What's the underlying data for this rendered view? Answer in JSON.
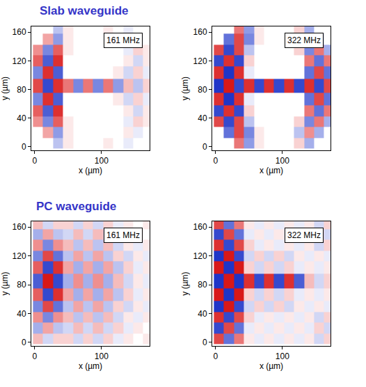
{
  "section_titles": [
    "Slab waveguide",
    "PC waveguide"
  ],
  "chart_data": [
    {
      "type": "heatmap",
      "title": "161 MHz",
      "xlabel": "x (µm)",
      "ylabel": "y (µm)",
      "xlim": [
        -5,
        172
      ],
      "ylim": [
        -5,
        168
      ],
      "xticks": [
        0,
        100
      ],
      "yticks": [
        0,
        40,
        80,
        120,
        160
      ],
      "zlim": [
        -1,
        1
      ],
      "x": [
        5,
        20,
        35,
        50,
        65,
        80,
        95,
        110,
        125,
        140,
        155,
        170
      ],
      "y": [
        5,
        20,
        35,
        50,
        65,
        85,
        105,
        120,
        135,
        150,
        165
      ],
      "cells": [
        [
          null,
          null,
          -0.3,
          0.1,
          0,
          0,
          0,
          0.1,
          0,
          -0.1,
          null,
          null
        ],
        [
          null,
          0.4,
          -0.5,
          0.1,
          0,
          0,
          0,
          0,
          0,
          0.1,
          -0.1,
          null
        ],
        [
          0.5,
          -0.6,
          0.7,
          0.1,
          0,
          0,
          0,
          0,
          0,
          -0.1,
          0.2,
          0.1
        ],
        [
          0.7,
          -0.8,
          0.9,
          0,
          0,
          0,
          0,
          0,
          0,
          0.1,
          -0.2,
          0.1
        ],
        [
          -0.6,
          0.9,
          -0.8,
          0,
          0,
          0,
          0,
          0,
          0.1,
          -0.2,
          0.2,
          -0.1
        ],
        [
          0.8,
          -0.9,
          0.9,
          0.6,
          -0.6,
          0.6,
          -0.6,
          0.6,
          -0.5,
          0.3,
          -0.3,
          0.2
        ],
        [
          -0.6,
          0.9,
          -0.8,
          0,
          0,
          0,
          0,
          0,
          0.1,
          -0.2,
          0.2,
          -0.1
        ],
        [
          0.7,
          -0.8,
          0.9,
          0,
          0,
          0,
          0,
          0,
          0,
          0.1,
          -0.2,
          0.1
        ],
        [
          0.5,
          -0.6,
          0.7,
          0.1,
          0,
          0,
          0,
          0,
          0,
          -0.1,
          0.2,
          0.1
        ],
        [
          null,
          0.4,
          -0.5,
          0.1,
          0,
          0,
          0,
          0,
          0,
          0.1,
          -0.1,
          null
        ],
        [
          null,
          null,
          -0.3,
          0.1,
          0,
          0,
          0,
          0.1,
          0,
          -0.1,
          null,
          null
        ]
      ]
    },
    {
      "type": "heatmap",
      "title": "322 MHz",
      "xlabel": "x (µm)",
      "ylabel": "y (µm)",
      "xlim": [
        -5,
        172
      ],
      "ylim": [
        -5,
        168
      ],
      "xticks": [
        0,
        100
      ],
      "yticks": [
        0,
        40,
        80,
        120,
        160
      ],
      "zlim": [
        -1,
        1
      ],
      "x": [
        5,
        20,
        35,
        50,
        65,
        80,
        95,
        110,
        125,
        140,
        155,
        170
      ],
      "y": [
        5,
        20,
        35,
        50,
        65,
        85,
        105,
        120,
        135,
        150,
        165
      ],
      "cells": [
        [
          null,
          null,
          0.6,
          -0.5,
          0.1,
          0,
          0,
          0,
          0.2,
          -0.4,
          null,
          null
        ],
        [
          null,
          -0.7,
          0.8,
          -0.6,
          0.1,
          0,
          0,
          0,
          -0.3,
          0.5,
          -0.4,
          null
        ],
        [
          0.8,
          -0.9,
          0.8,
          -0.3,
          0,
          0,
          0,
          0,
          0.2,
          -0.6,
          0.6,
          -0.4
        ],
        [
          -0.9,
          0.9,
          -0.9,
          0.2,
          0,
          0,
          0,
          0,
          0,
          0.6,
          -0.7,
          0.6
        ],
        [
          0.9,
          -1,
          0.9,
          -0.1,
          0,
          0,
          0,
          0,
          0,
          -0.7,
          0.8,
          -0.7
        ],
        [
          -1,
          1,
          -0.9,
          0.9,
          -0.9,
          0.9,
          -0.9,
          0.9,
          -0.9,
          0.9,
          -0.9,
          0.8
        ],
        [
          0.9,
          -1,
          0.9,
          -0.1,
          0,
          0,
          0,
          0,
          0,
          -0.7,
          0.8,
          -0.7
        ],
        [
          -0.9,
          0.9,
          -0.9,
          0.2,
          0,
          0,
          0,
          0,
          0,
          0.6,
          -0.7,
          0.6
        ],
        [
          0.8,
          -0.9,
          0.8,
          -0.3,
          0,
          0,
          0,
          0,
          0.2,
          -0.6,
          0.6,
          -0.4
        ],
        [
          null,
          -0.7,
          0.8,
          -0.6,
          0.1,
          0,
          0,
          0,
          -0.3,
          0.5,
          -0.4,
          null
        ],
        [
          null,
          null,
          0.6,
          -0.5,
          0.1,
          0,
          0,
          0,
          0.2,
          -0.4,
          null,
          null
        ]
      ]
    },
    {
      "type": "heatmap",
      "title": "161 MHz",
      "xlabel": "x (µm)",
      "ylabel": "y (µm)",
      "xlim": [
        -5,
        172
      ],
      "ylim": [
        -5,
        168
      ],
      "xticks": [
        0,
        100
      ],
      "yticks": [
        0,
        40,
        80,
        120,
        160
      ],
      "zlim": [
        -1,
        1
      ],
      "x": [
        5,
        20,
        35,
        50,
        65,
        80,
        95,
        110,
        125,
        140,
        155,
        170
      ],
      "y": [
        5,
        20,
        35,
        50,
        65,
        85,
        105,
        120,
        135,
        150,
        165
      ],
      "cells": [
        [
          0.3,
          -0.2,
          0.2,
          0.2,
          -0.2,
          0.2,
          -0.2,
          0.2,
          -0.1,
          0.1,
          0,
          0.1
        ],
        [
          -0.4,
          0.4,
          -0.3,
          -0.2,
          0.3,
          -0.2,
          0.3,
          -0.2,
          0.2,
          -0.1,
          0.1,
          0
        ],
        [
          0.5,
          -0.6,
          0.5,
          0.3,
          -0.3,
          0.3,
          -0.3,
          0.3,
          -0.2,
          0.1,
          -0.1,
          0.1
        ],
        [
          -0.6,
          0.8,
          -0.7,
          -0.3,
          0.4,
          -0.3,
          0.4,
          -0.3,
          0.2,
          -0.2,
          0.1,
          -0.1
        ],
        [
          0.7,
          -0.9,
          0.9,
          0.4,
          -0.4,
          0.4,
          -0.4,
          0.4,
          -0.3,
          0.2,
          -0.1,
          0.1
        ],
        [
          -0.8,
          1,
          -0.9,
          -0.4,
          0.5,
          -0.4,
          0.5,
          -0.4,
          0.3,
          -0.2,
          0.1,
          -0.1
        ],
        [
          0.7,
          -0.9,
          0.9,
          0.4,
          -0.4,
          0.4,
          -0.4,
          0.4,
          -0.3,
          0.2,
          -0.1,
          0.1
        ],
        [
          -0.6,
          0.8,
          -0.7,
          -0.3,
          0.4,
          -0.3,
          0.4,
          -0.3,
          0.2,
          -0.2,
          0.1,
          -0.1
        ],
        [
          0.5,
          -0.6,
          0.5,
          0.3,
          -0.3,
          0.3,
          -0.3,
          0.3,
          -0.2,
          0.1,
          -0.1,
          0.1
        ],
        [
          -0.4,
          0.4,
          -0.3,
          -0.2,
          0.3,
          -0.2,
          0.3,
          -0.2,
          0.2,
          -0.1,
          0.1,
          0
        ],
        [
          0.3,
          -0.2,
          0.2,
          0.2,
          -0.2,
          0.2,
          -0.2,
          0.2,
          -0.1,
          0.1,
          0,
          0.1
        ]
      ]
    },
    {
      "type": "heatmap",
      "title": "322 MHz",
      "xlabel": "x (µm)",
      "ylabel": "y (µm)",
      "xlim": [
        -5,
        172
      ],
      "ylim": [
        -5,
        168
      ],
      "xticks": [
        0,
        100
      ],
      "yticks": [
        0,
        40,
        80,
        120,
        160
      ],
      "zlim": [
        -1,
        1
      ],
      "x": [
        5,
        20,
        35,
        50,
        65,
        80,
        95,
        110,
        125,
        140,
        155,
        170
      ],
      "y": [
        5,
        20,
        35,
        50,
        65,
        85,
        105,
        120,
        135,
        150,
        165
      ],
      "cells": [
        [
          0.8,
          -0.7,
          0.6,
          0.1,
          -0.1,
          0.1,
          -0.1,
          0.1,
          -0.1,
          0.1,
          -0.2,
          0.2
        ],
        [
          -0.9,
          0.8,
          -0.7,
          -0.1,
          0.1,
          -0.1,
          0.1,
          -0.1,
          0.1,
          -0.1,
          0.2,
          -0.2
        ],
        [
          0.9,
          -0.9,
          0.8,
          0.2,
          -0.1,
          0.1,
          -0.1,
          0.1,
          -0.1,
          0.1,
          -0.2,
          0.2
        ],
        [
          -1,
          1,
          -0.9,
          -0.2,
          0.2,
          -0.2,
          0.2,
          -0.2,
          0.1,
          -0.1,
          0.1,
          -0.1
        ],
        [
          1,
          -1,
          1,
          0.2,
          -0.2,
          0.2,
          -0.2,
          0.2,
          -0.1,
          0.1,
          -0.1,
          0.1
        ],
        [
          -1,
          1,
          -1,
          0.9,
          -0.9,
          0.9,
          -0.9,
          0.9,
          -0.8,
          0.3,
          -0.2,
          0.2
        ],
        [
          1,
          -1,
          1,
          0.2,
          -0.2,
          0.2,
          -0.2,
          0.2,
          -0.1,
          0.1,
          -0.1,
          0.1
        ],
        [
          -1,
          1,
          -0.9,
          -0.2,
          0.2,
          -0.2,
          0.2,
          -0.2,
          0.1,
          -0.1,
          0.1,
          -0.1
        ],
        [
          0.9,
          -0.9,
          0.8,
          0.2,
          -0.1,
          0.1,
          -0.1,
          0.1,
          -0.1,
          0.1,
          -0.2,
          0.2
        ],
        [
          -0.9,
          0.8,
          -0.7,
          -0.1,
          0.1,
          -0.1,
          0.1,
          -0.1,
          0.1,
          -0.1,
          0.2,
          -0.2
        ],
        [
          0.8,
          -0.7,
          0.6,
          0.1,
          -0.1,
          0.1,
          -0.1,
          0.1,
          -0.1,
          0.1,
          -0.2,
          0.2
        ]
      ]
    }
  ]
}
